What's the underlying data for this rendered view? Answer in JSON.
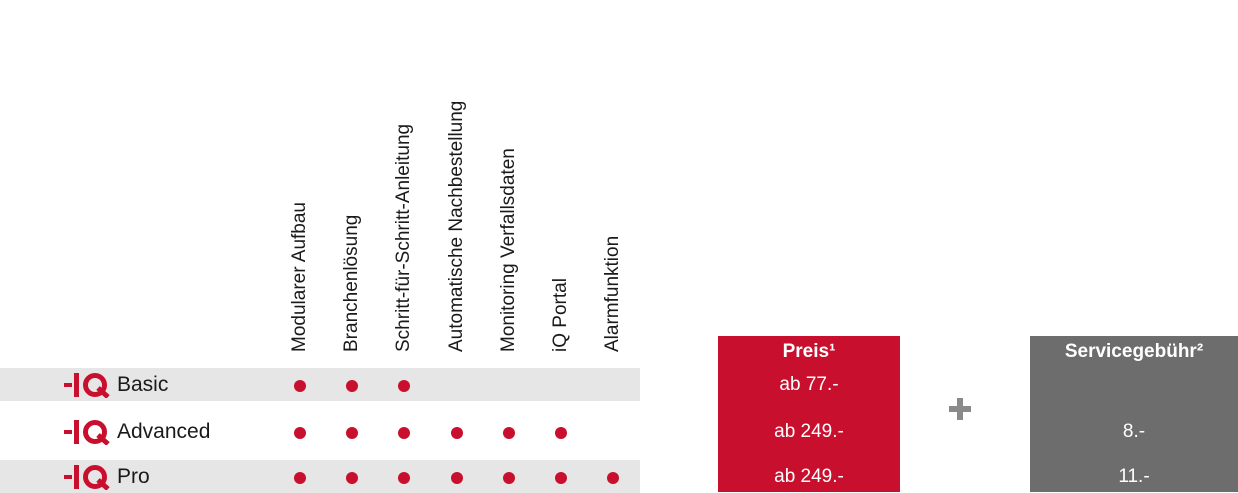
{
  "features": [
    "Modularer Aufbau",
    "Branchenlösung",
    "Schritt-für-Schritt-Anleitung",
    "Automatische Nachbestellung",
    "Monitoring Verfallsdaten",
    "iQ Portal",
    "Alarmfunktion"
  ],
  "rows": [
    {
      "name": "Basic",
      "features": [
        true,
        true,
        true,
        false,
        false,
        false,
        false
      ],
      "price": "ab 77.-",
      "service": null
    },
    {
      "name": "Advanced",
      "features": [
        true,
        true,
        true,
        true,
        true,
        true,
        false
      ],
      "price": "ab 249.-",
      "service": "8.-"
    },
    {
      "name": "Pro",
      "features": [
        true,
        true,
        true,
        true,
        true,
        true,
        true
      ],
      "price": "ab 249.-",
      "service": "11.-"
    }
  ],
  "price_header": "Preis¹",
  "service_header": "Servicegebühr²",
  "accent_color": "#c8102e",
  "service_color": "#6d6d6d"
}
